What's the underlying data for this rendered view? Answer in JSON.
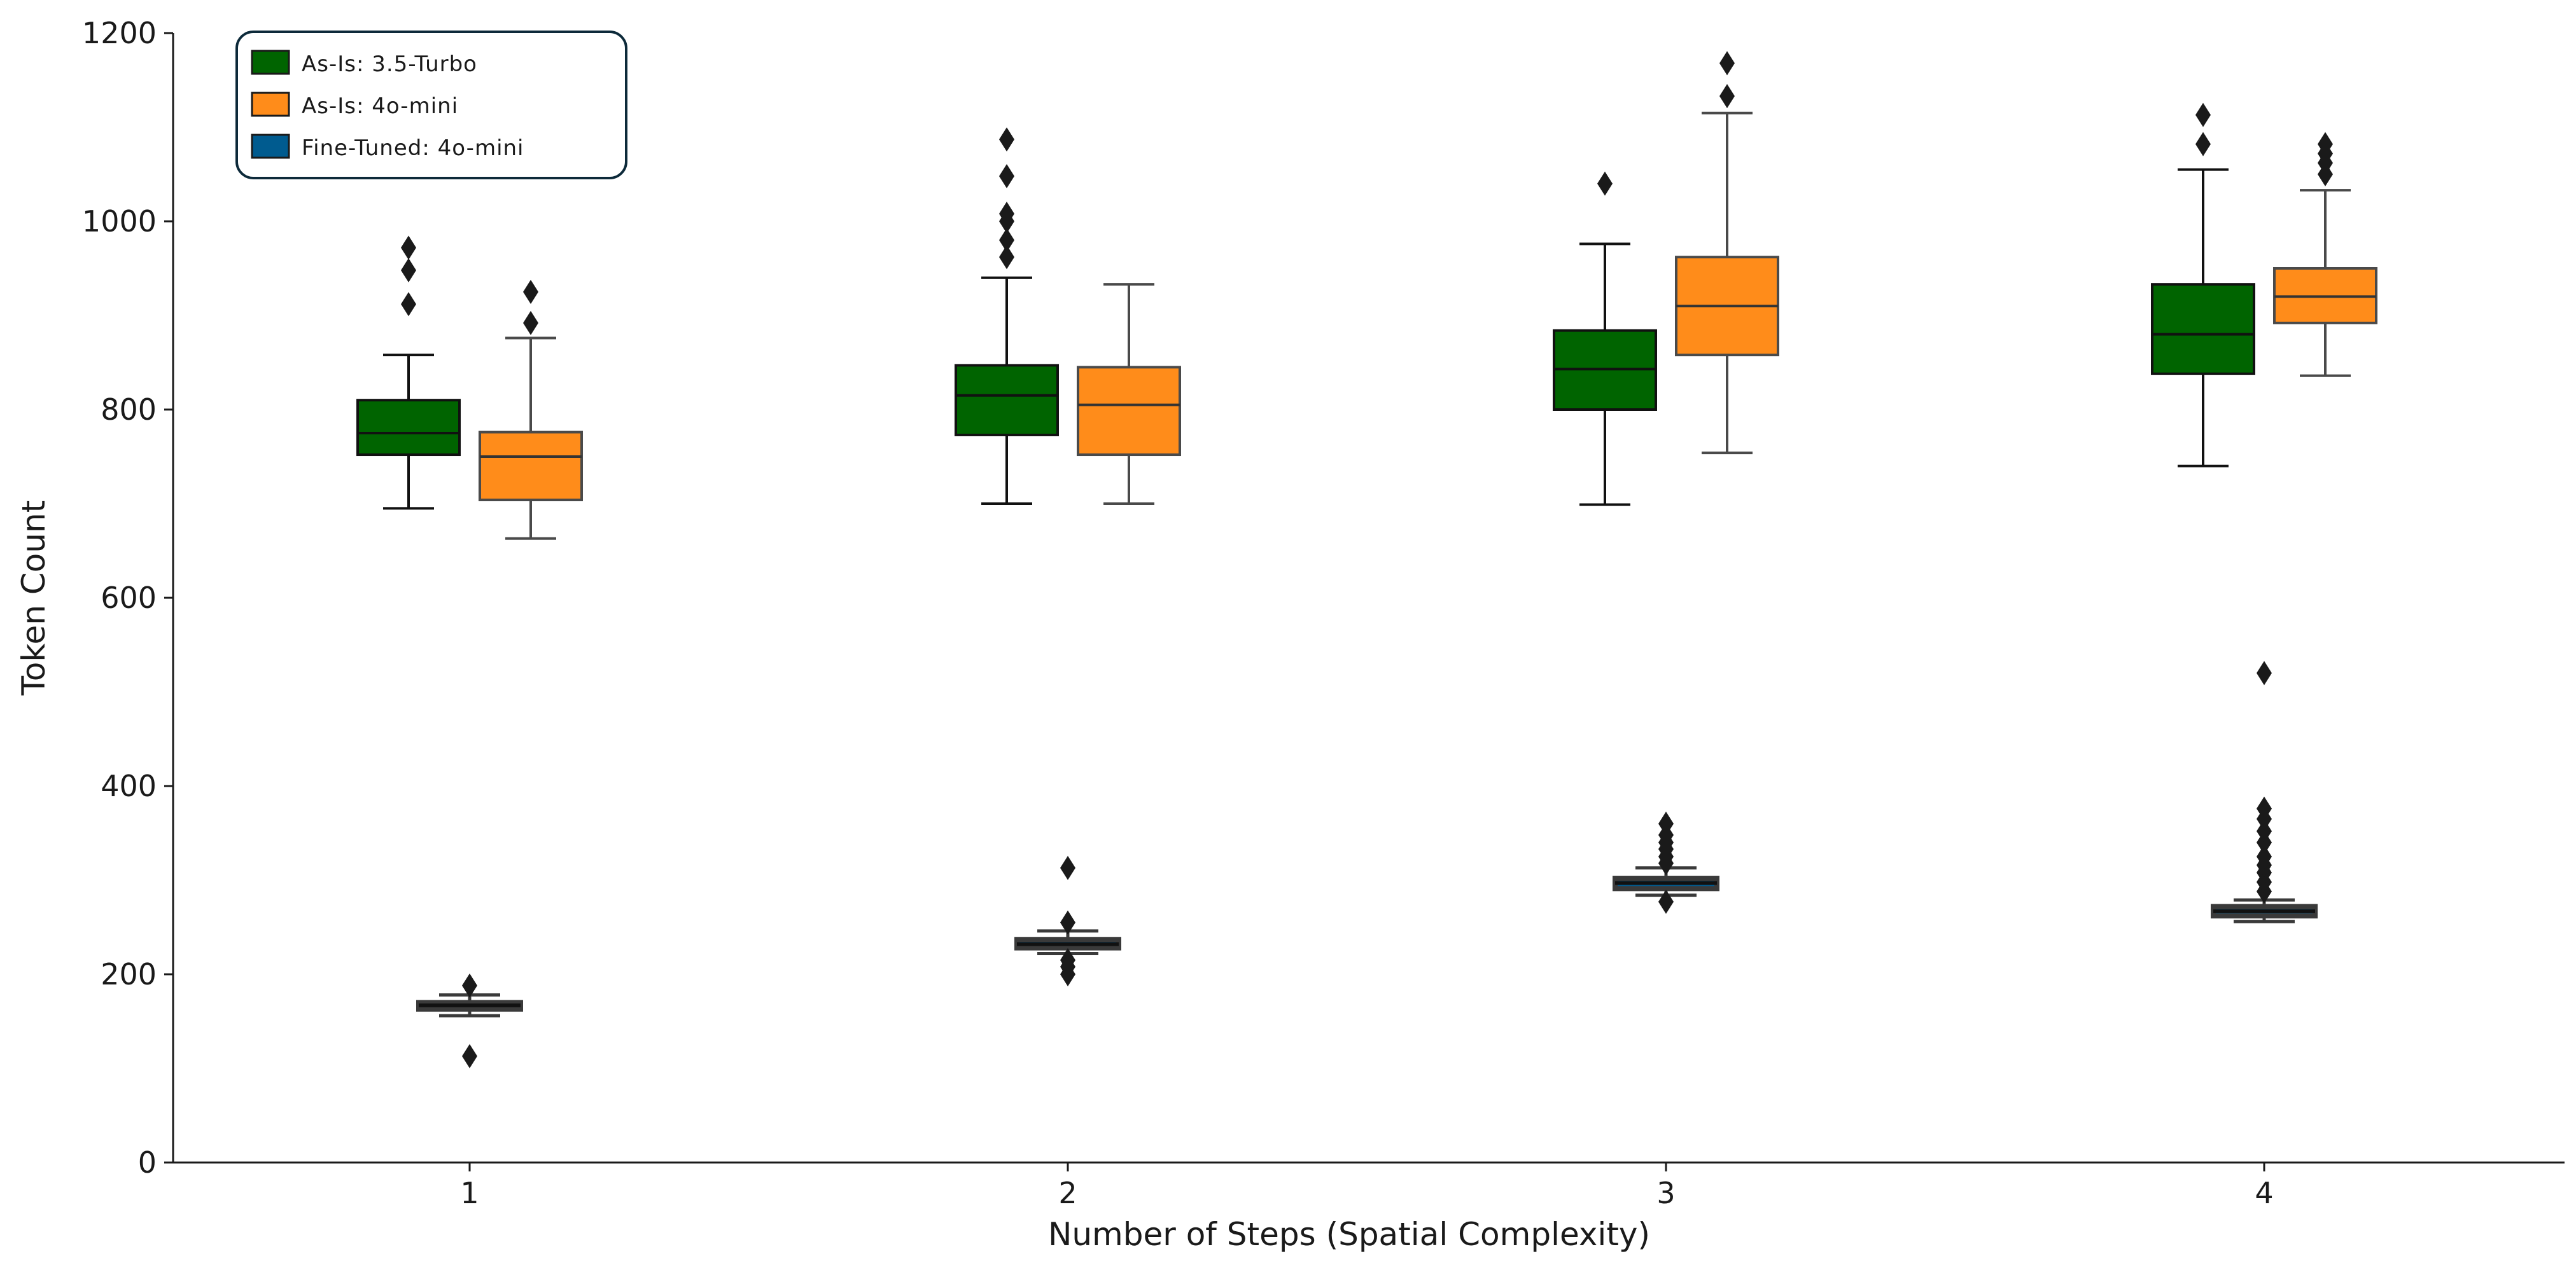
{
  "chart_data": {
    "type": "box",
    "xlabel": "Number of Steps (Spatial Complexity)",
    "ylabel": "Token Count",
    "ylim": [
      0,
      1200
    ],
    "yticks": [
      0,
      200,
      400,
      600,
      800,
      1000,
      1200
    ],
    "categories": [
      "1",
      "2",
      "3",
      "4"
    ],
    "legend_position": "top-left",
    "grid": false,
    "series": [
      {
        "name": "As-Is: 3.5-Turbo",
        "color": "#006400",
        "boxes": [
          {
            "whislo": 695,
            "q1": 752,
            "med": 775,
            "q3": 810,
            "whishi": 858,
            "fliers": [
              912,
              948,
              972
            ]
          },
          {
            "whislo": 700,
            "q1": 773,
            "med": 815,
            "q3": 847,
            "whishi": 940,
            "fliers": [
              962,
              980,
              1000,
              1008,
              1048,
              1087
            ]
          },
          {
            "whislo": 699,
            "q1": 800,
            "med": 843,
            "q3": 884,
            "whishi": 976,
            "fliers": [
              1040
            ]
          },
          {
            "whislo": 740,
            "q1": 838,
            "med": 880,
            "q3": 933,
            "whishi": 1055,
            "fliers": [
              1082,
              1113
            ]
          }
        ]
      },
      {
        "name": "As-Is: 4o-mini",
        "color": "#ff8c1a",
        "boxes": [
          {
            "whislo": 663,
            "q1": 704,
            "med": 750,
            "q3": 776,
            "whishi": 876,
            "fliers": [
              892,
              925
            ]
          },
          {
            "whislo": 700,
            "q1": 752,
            "med": 805,
            "q3": 845,
            "whishi": 933,
            "fliers": []
          },
          {
            "whislo": 754,
            "q1": 858,
            "med": 910,
            "q3": 962,
            "whishi": 1115,
            "fliers": [
              1133,
              1168
            ]
          },
          {
            "whislo": 836,
            "q1": 892,
            "med": 920,
            "q3": 950,
            "whishi": 1033,
            "fliers": [
              1050,
              1062,
              1072,
              1082
            ]
          }
        ]
      },
      {
        "name": "Fine-Tuned: 4o-mini",
        "color": "#005b8f",
        "boxes": [
          {
            "whislo": 156,
            "q1": 163,
            "med": 167,
            "q3": 170,
            "whishi": 178,
            "fliers": [
              113,
              188
            ]
          },
          {
            "whislo": 222,
            "q1": 228,
            "med": 232,
            "q3": 237,
            "whishi": 246,
            "fliers": [
              200,
              208,
              215,
              255,
              313
            ]
          },
          {
            "whislo": 284,
            "q1": 291,
            "med": 297,
            "q3": 302,
            "whishi": 313,
            "fliers": [
              277,
              318,
              325,
              333,
              340,
              348,
              360
            ]
          },
          {
            "whislo": 256,
            "q1": 262,
            "med": 267,
            "q3": 272,
            "whishi": 279,
            "fliers": [
              288,
              298,
              308,
              316,
              325,
              340,
              352,
              365,
              376,
              520
            ]
          }
        ]
      }
    ]
  }
}
